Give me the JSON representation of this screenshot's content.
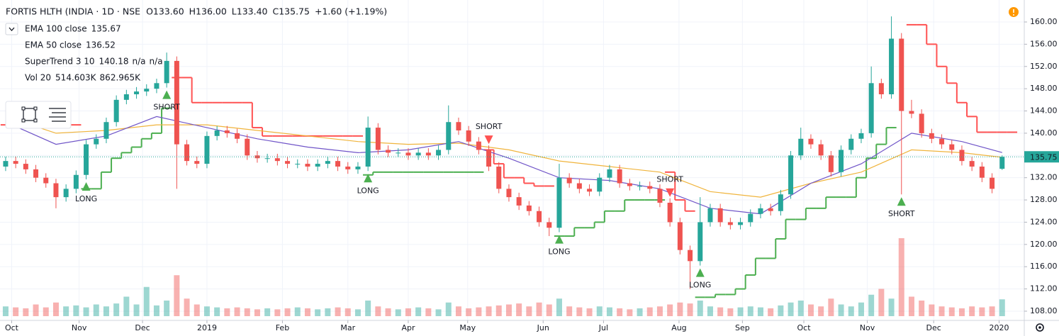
{
  "chart_data": {
    "type": "candlestick",
    "title": "FORTIS HLTH (INDIA · 1D · NSE",
    "ohlc_labels": [
      "O133.60",
      "H136.00",
      "L133.40",
      "C135.75",
      "+1.60 (+1.19%)"
    ],
    "indicators": [
      {
        "name": "EMA 100 close",
        "values": [
          "135.67"
        ],
        "colors": [
          "#e0a020"
        ]
      },
      {
        "name": "EMA 50 close",
        "values": [
          "136.52"
        ],
        "colors": [
          "#6a4fc0"
        ]
      },
      {
        "name": "SuperTrend 3 10",
        "values": [
          "140.18",
          "n/a",
          "n/a"
        ],
        "colors": [
          "#f23645",
          "#4caf50",
          "#f08030"
        ]
      },
      {
        "name": "Vol 20",
        "values": [
          "514.603K",
          "862.965K"
        ],
        "colors": [
          "#26a69a",
          "#f08030"
        ]
      }
    ],
    "xlim": [
      -0.56,
      101.2
    ],
    "ylim": [
      106.34,
      163.95
    ],
    "yticks": [
      108,
      112,
      116,
      120,
      124,
      128,
      132,
      136,
      140,
      144,
      148,
      152,
      156,
      160
    ],
    "ytick_labels": [
      "108.00",
      "112.00",
      "116.00",
      "120.00",
      "124.00",
      "128.00",
      "132.00",
      "136.00",
      "140.00",
      "144.00",
      "148.00",
      "152.00",
      "156.00",
      "160.00"
    ],
    "xticks": [
      {
        "value": 0.6,
        "label": "Oct"
      },
      {
        "value": 7.3,
        "label": "Nov"
      },
      {
        "value": 13.6,
        "label": "Dec"
      },
      {
        "value": 20,
        "label": "2019"
      },
      {
        "value": 27.5,
        "label": "Feb"
      },
      {
        "value": 34,
        "label": "Mar"
      },
      {
        "value": 40,
        "label": "Apr"
      },
      {
        "value": 45.9,
        "label": "May"
      },
      {
        "value": 53.4,
        "label": "Jun"
      },
      {
        "value": 59.4,
        "label": "Jul"
      },
      {
        "value": 66.9,
        "label": "Aug"
      },
      {
        "value": 73.2,
        "label": "Sep"
      },
      {
        "value": 79.3,
        "label": "Oct"
      },
      {
        "value": 85.6,
        "label": "Nov"
      },
      {
        "value": 92.2,
        "label": "Dec"
      },
      {
        "value": 98.7,
        "label": "2020"
      }
    ],
    "grid": true,
    "up_color": "#26a69a",
    "down_color": "#ef5350",
    "candles": {
      "open": [
        134,
        135,
        134.5,
        133.5,
        132,
        131,
        128.5,
        130,
        132.5,
        138,
        139,
        142,
        146,
        147,
        147.5,
        148,
        149,
        153,
        138,
        135,
        134.5,
        139.5,
        140.5,
        140,
        139,
        136,
        135.5,
        135.5,
        135,
        134.5,
        134.5,
        134,
        134.5,
        135,
        134,
        133.5,
        134,
        141,
        137,
        136.5,
        136.5,
        136,
        136.5,
        136,
        137,
        142,
        140.5,
        138.5,
        137,
        134,
        130,
        128.5,
        127,
        126,
        124,
        123,
        132,
        131,
        130,
        129.5,
        132,
        133.5,
        131,
        130.5,
        130.5,
        130,
        127.5,
        124,
        119,
        117,
        124,
        126.5,
        124,
        123.5,
        124,
        125.5,
        126.5,
        126,
        129,
        136,
        139,
        138,
        136,
        133,
        137,
        139,
        140,
        149,
        147,
        157,
        144,
        143.5,
        140,
        139,
        138,
        137,
        135,
        134,
        132,
        133.6
      ],
      "high": [
        135.8,
        135.8,
        135.3,
        134.3,
        132.8,
        131.8,
        130.8,
        133.3,
        138.8,
        139.8,
        142.8,
        146.8,
        147.8,
        148.3,
        148.8,
        149.8,
        154.5,
        153.8,
        138.8,
        135.8,
        140.3,
        141.3,
        141.3,
        140.8,
        139.8,
        136.8,
        136.3,
        136.3,
        135.8,
        135.3,
        135.3,
        135.3,
        135.8,
        135.8,
        134.8,
        134.8,
        143,
        141.8,
        137.8,
        137.3,
        137.3,
        137.3,
        137.3,
        137.8,
        145,
        142.8,
        141.3,
        139.3,
        137.8,
        134.8,
        130.8,
        129.3,
        127.8,
        126.8,
        124.8,
        134.5,
        132.8,
        131.8,
        130.8,
        132.8,
        134.3,
        134.3,
        131.8,
        131.3,
        131.3,
        130.8,
        128.3,
        124.8,
        119.8,
        128.5,
        127.3,
        127.3,
        124.8,
        124.8,
        126.3,
        127.3,
        127.3,
        129.8,
        136.8,
        141,
        139.8,
        138.8,
        136.8,
        137.8,
        139.8,
        140.8,
        152,
        149.8,
        161,
        158,
        146,
        144.3,
        140.8,
        139.8,
        138.8,
        137.8,
        135.8,
        134.8,
        132.8,
        136
      ],
      "low": [
        133.2,
        133.7,
        132.7,
        131.2,
        130.2,
        126.5,
        127.7,
        129.2,
        131.7,
        137.2,
        138.2,
        141.2,
        145.2,
        146.2,
        146.7,
        147.2,
        148.2,
        130,
        134.2,
        133.7,
        133.7,
        138.7,
        139.2,
        138.2,
        135.2,
        134.7,
        134.7,
        134.2,
        133.7,
        133.7,
        133.2,
        133.2,
        133.7,
        133.2,
        132.7,
        132.7,
        133.2,
        136.2,
        135.7,
        135.7,
        135.2,
        135.2,
        135.2,
        135.2,
        136.2,
        139.7,
        137.7,
        136.2,
        133.2,
        129.2,
        127.7,
        126.2,
        125.2,
        123.2,
        121.5,
        122.2,
        130.2,
        129.2,
        128.7,
        128.7,
        131.2,
        130.2,
        129.7,
        129.7,
        129.2,
        126.7,
        123.2,
        118.2,
        112,
        116.2,
        123.2,
        123.2,
        122.7,
        122.7,
        123.2,
        124.7,
        125.2,
        125.2,
        128.2,
        135.2,
        137.2,
        135.2,
        132.2,
        132.2,
        136.2,
        138.2,
        139.2,
        146.2,
        146.2,
        129,
        142.7,
        139.2,
        138.2,
        137.2,
        136.2,
        134.2,
        133.2,
        131.2,
        129.2,
        133.4
      ],
      "close": [
        135,
        134.5,
        133.5,
        132,
        131,
        128.5,
        130,
        132.5,
        138,
        139,
        142,
        146,
        147,
        147.5,
        148,
        149,
        153,
        138,
        135,
        134.5,
        139.5,
        140.5,
        140,
        139,
        136,
        135.5,
        135.5,
        135,
        134.5,
        134.5,
        134,
        134.5,
        135,
        134,
        133.5,
        134,
        141,
        137,
        136.5,
        136.5,
        136,
        136.5,
        136,
        137,
        142,
        140.5,
        138.5,
        137,
        134,
        130,
        128.5,
        127,
        126,
        124,
        123,
        132,
        131,
        130,
        129.5,
        132,
        133.5,
        131,
        130.5,
        130.5,
        130,
        127.5,
        124,
        119,
        117,
        124,
        126.5,
        124,
        123.5,
        124,
        125.5,
        126.5,
        126,
        129,
        136,
        139,
        138,
        136,
        133,
        137,
        139,
        140,
        149,
        147,
        157,
        144,
        143.5,
        140,
        139,
        138,
        137,
        135,
        134,
        132,
        130,
        135.75
      ]
    },
    "volume": [
      500,
      450,
      400,
      600,
      450,
      700,
      500,
      550,
      450,
      600,
      500,
      650,
      1000,
      600,
      1500,
      550,
      800,
      2100,
      900,
      600,
      500,
      450,
      400,
      450,
      400,
      350,
      400,
      350,
      400,
      450,
      400,
      350,
      400,
      450,
      400,
      350,
      800,
      500,
      400,
      350,
      400,
      450,
      400,
      350,
      700,
      500,
      400,
      450,
      500,
      550,
      600,
      650,
      500,
      700,
      600,
      900,
      500,
      450,
      400,
      500,
      450,
      400,
      350,
      400,
      450,
      500,
      600,
      700,
      650,
      800,
      500,
      450,
      400,
      450,
      500,
      450,
      400,
      550,
      700,
      800,
      600,
      500,
      900,
      600,
      500,
      700,
      1100,
      1400,
      900,
      4000,
      1000,
      800,
      600,
      500,
      450,
      400,
      500,
      450,
      500,
      862.965
    ],
    "ema": [
      {
        "name": "EMA 100 close",
        "color": "#f0b43c",
        "x": [
          0,
          5,
          10,
          15,
          20,
          25,
          30,
          35,
          40,
          45,
          50,
          55,
          60,
          65,
          70,
          75,
          80,
          85,
          90,
          95,
          99
        ],
        "values": [
          143,
          140,
          140.5,
          141.5,
          141.5,
          140.5,
          139.5,
          138.5,
          138,
          138.2,
          137,
          135,
          134,
          133,
          129.5,
          128.5,
          131,
          133,
          137,
          136.5,
          135.67
        ]
      },
      {
        "name": "EMA 50 close",
        "color": "#7055c8",
        "x": [
          0,
          5,
          10,
          15,
          20,
          25,
          30,
          35,
          40,
          45,
          50,
          55,
          60,
          65,
          70,
          75,
          80,
          85,
          90,
          95,
          99
        ],
        "values": [
          142,
          138,
          139.5,
          143,
          141,
          139,
          137.5,
          136.5,
          137,
          138.5,
          135.5,
          132,
          131.5,
          130,
          126.5,
          125.5,
          131,
          134.5,
          140,
          138.5,
          136.52
        ]
      }
    ],
    "supertrend": {
      "up_color": "#4caf50",
      "down_color": "#ff5252",
      "up_values": [
        null,
        null,
        null,
        null,
        null,
        null,
        null,
        null,
        130,
        130,
        133,
        135.5,
        136.5,
        137.5,
        139,
        140,
        144.5,
        null,
        null,
        null,
        null,
        null,
        null,
        null,
        null,
        null,
        null,
        null,
        null,
        null,
        null,
        null,
        null,
        null,
        null,
        null,
        132.5,
        133,
        133,
        133,
        133,
        133,
        133,
        133,
        133,
        133,
        133,
        133,
        null,
        null,
        null,
        null,
        null,
        null,
        null,
        121.5,
        121.5,
        123,
        123,
        124,
        126,
        126,
        128,
        128,
        128,
        128,
        null,
        null,
        null,
        110.5,
        110.5,
        111,
        111,
        112,
        114.5,
        117.5,
        117.5,
        121,
        124.5,
        124.5,
        126.5,
        126.5,
        128.5,
        128.5,
        128.5,
        132,
        135.5,
        138,
        141,
        null,
        null,
        null,
        null,
        null,
        null,
        null,
        null,
        null,
        null,
        null
      ],
      "down_values": [
        141.5,
        141.5,
        141.5,
        141.5,
        141.5,
        141.5,
        141.5,
        141.5,
        null,
        null,
        null,
        null,
        null,
        null,
        null,
        null,
        null,
        150,
        150,
        145.5,
        145.5,
        145.5,
        145.5,
        145.5,
        145.5,
        141,
        139.5,
        139.5,
        139.5,
        139.5,
        139.5,
        139.5,
        139.5,
        139.5,
        139.5,
        139.5,
        null,
        null,
        null,
        null,
        null,
        null,
        null,
        null,
        null,
        null,
        null,
        null,
        137,
        134.5,
        132,
        132,
        131,
        130.5,
        130.5,
        null,
        null,
        null,
        null,
        null,
        null,
        null,
        null,
        null,
        null,
        null,
        133,
        128,
        126,
        null,
        null,
        null,
        null,
        null,
        null,
        null,
        null,
        null,
        null,
        null,
        null,
        null,
        null,
        null,
        null,
        null,
        null,
        null,
        null,
        null,
        159.5,
        159.5,
        156,
        152,
        149,
        145.5,
        143,
        140.18,
        140.18,
        140.18,
        140.18
      ]
    },
    "signals": [
      {
        "label": "LONG",
        "index": 8
      },
      {
        "label": "SHORT",
        "index": 16
      },
      {
        "label": "LONG",
        "index": 36
      },
      {
        "label": "SHORT",
        "index": 48
      },
      {
        "label": "LONG",
        "index": 55
      },
      {
        "label": "SHORT",
        "index": 66
      },
      {
        "label": "LONG",
        "index": 69
      },
      {
        "label": "SHORT",
        "index": 89
      }
    ]
  }
}
